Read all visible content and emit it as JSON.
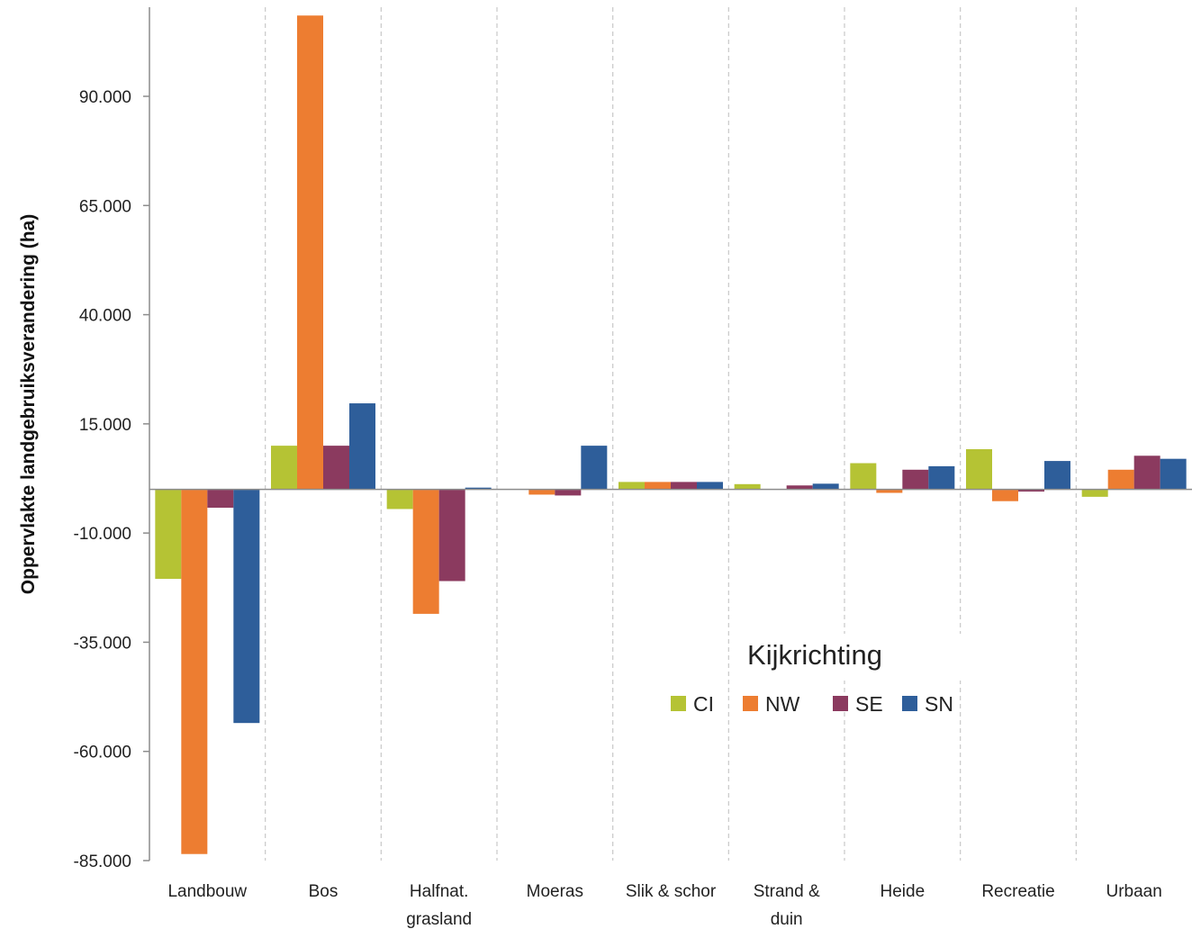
{
  "chart_data": {
    "type": "bar",
    "title": "",
    "xlabel": "",
    "ylabel": "Oppervlakte landgebruiksverandering (ha)",
    "ylim": [
      -85000,
      112000
    ],
    "yticks": [
      90000,
      65000,
      40000,
      15000,
      -10000,
      -35000,
      -60000,
      -85000
    ],
    "ytick_labels": [
      "90.000",
      "65.000",
      "40.000",
      "15.000",
      "-10.000",
      "-35.000",
      "-60.000",
      "-85.000"
    ],
    "categories": [
      [
        "Landbouw"
      ],
      [
        "Bos"
      ],
      [
        "Halfnat.",
        "grasland"
      ],
      [
        "Moeras"
      ],
      [
        "Slik & schor"
      ],
      [
        "Strand &",
        "duin"
      ],
      [
        "Heide"
      ],
      [
        "Recreatie"
      ],
      [
        "Urbaan"
      ]
    ],
    "series": [
      {
        "name": "CI",
        "color": "#b5c334",
        "values": [
          -20500,
          10000,
          -4500,
          0,
          1700,
          1200,
          6000,
          9200,
          -1700
        ]
      },
      {
        "name": "NW",
        "color": "#ed7d31",
        "values": [
          -83500,
          108500,
          -28500,
          -1200,
          1700,
          0,
          -800,
          -2700,
          4500
        ]
      },
      {
        "name": "SE",
        "color": "#8b3a5f",
        "values": [
          -4200,
          10000,
          -21000,
          -1400,
          1700,
          900,
          4500,
          -500,
          7700
        ]
      },
      {
        "name": "SN",
        "color": "#2e5e9a",
        "values": [
          -53500,
          19700,
          400,
          10000,
          1700,
          1300,
          5300,
          6500,
          7000
        ]
      }
    ],
    "legend": {
      "title": "Kijkrichting",
      "placement": "right-center"
    },
    "grid": "vertical dashed separators between categories"
  }
}
